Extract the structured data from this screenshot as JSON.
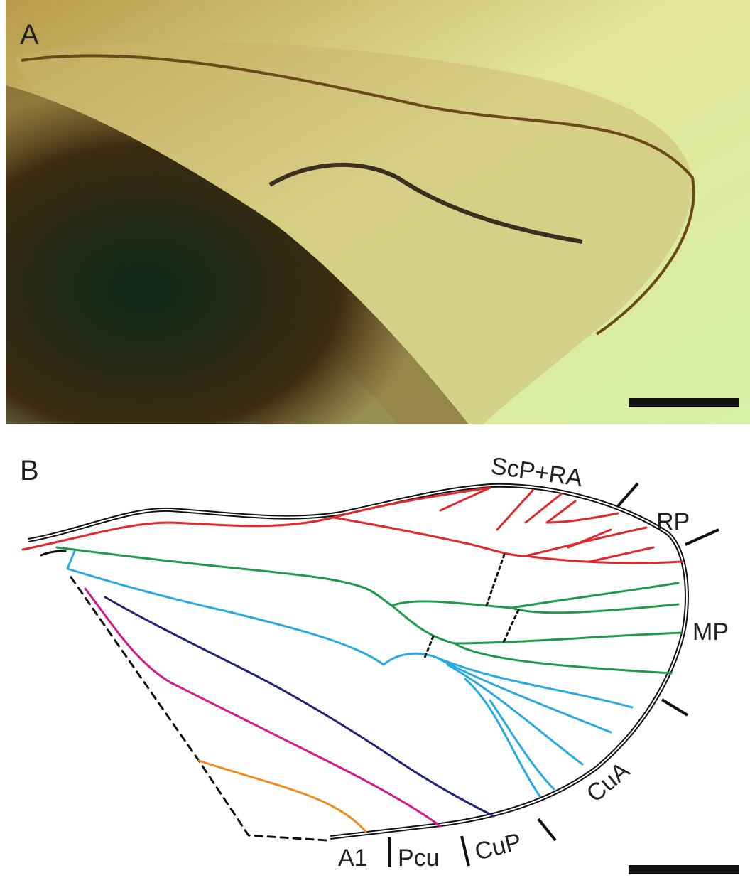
{
  "panels": [
    {
      "label": "A"
    },
    {
      "label": "B",
      "vein_labels": [
        "ScP+RA",
        "RP",
        "MP",
        "CuA",
        "CuP",
        "Pcu",
        "A1"
      ]
    }
  ]
}
